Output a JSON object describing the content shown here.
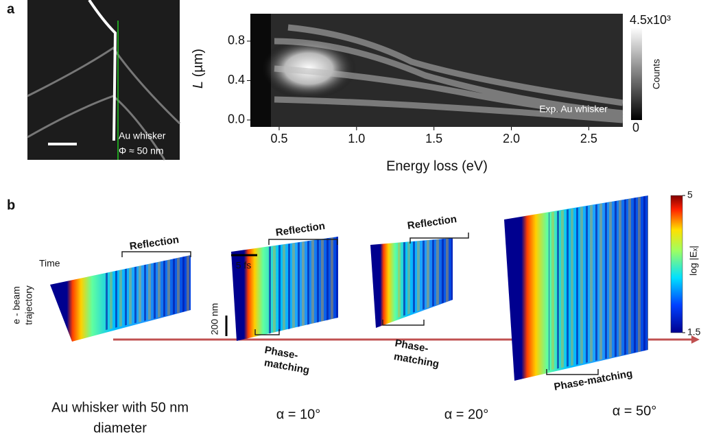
{
  "panel_a": {
    "label": "a",
    "image": {
      "name": "Au whisker",
      "diameter": "Φ ≈ 50 nm"
    },
    "heatmap": {
      "annotation": "Exp. Au whisker",
      "xlabel": "Energy loss  (eV)",
      "ylabel_var": "L",
      "ylabel_unit": "(µm)",
      "xlim": [
        0.314,
        2.72
      ],
      "ylim": [
        -0.07,
        1.078
      ],
      "xticks": [
        0.5,
        {
          "value": 1,
          "label": "1.0"
        },
        1.5,
        {
          "value": 2,
          "label": "2.0"
        },
        2.5
      ],
      "yticks": [
        {
          "value": 0,
          "label": "0.0"
        },
        0.4,
        0.8
      ],
      "colorbar": {
        "max_label": "4.5x10³",
        "min_label": "0",
        "label": "Counts"
      }
    }
  },
  "panel_b": {
    "label": "b",
    "time": "Time",
    "trajectory": [
      "e - beam",
      "trajectory"
    ],
    "reflection": "Reflection",
    "phase_matching": [
      "Phase-",
      "matching"
    ],
    "phase_matching_single": "Phase-matching",
    "time_scale": "5 fs",
    "length_scale": "200 nm",
    "captions": {
      "whisker": [
        "Au whisker with 50 nm",
        "diameter"
      ],
      "alpha10": "α = 10°",
      "alpha20": "α = 20°",
      "alpha50": "α = 50°"
    },
    "colorbar": {
      "ticks": [
        1.5,
        5
      ],
      "label": "log |Eₓ|"
    }
  }
}
